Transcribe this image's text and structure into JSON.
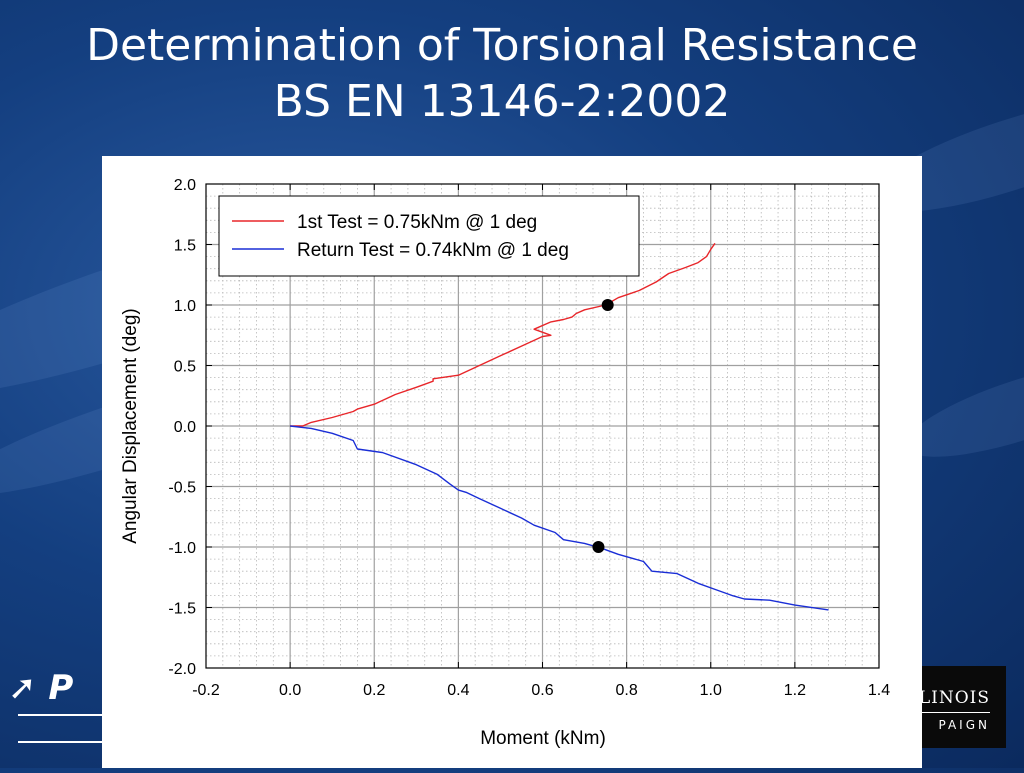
{
  "slide": {
    "title_line1": "Determination of Torsional Resistance",
    "title_line2": "BS EN 13146-2:2002",
    "logo_left_text": "P",
    "logo_right_text1": "LINOIS",
    "logo_right_text2": "PAIGN"
  },
  "chart_data": {
    "type": "line",
    "title": "",
    "xlabel": "Moment (kNm)",
    "ylabel": "Angular Displacement (deg)",
    "xlim": [
      -0.2,
      1.4
    ],
    "ylim": [
      -2.0,
      2.0
    ],
    "x_ticks": [
      "-0.2",
      "0.0",
      "0.2",
      "0.4",
      "0.6",
      "0.8",
      "1.0",
      "1.2",
      "1.4"
    ],
    "y_ticks": [
      "2.0",
      "1.5",
      "1.0",
      "0.5",
      "0.0",
      "-0.5",
      "-1.0",
      "-1.5",
      "-2.0"
    ],
    "grid": true,
    "legend_position": "top-left",
    "series": [
      {
        "name": "1st Test = 0.75kNm @ 1 deg",
        "color": "#e8262a",
        "points": [
          [
            0.0,
            0.0
          ],
          [
            0.03,
            0.0
          ],
          [
            0.05,
            0.03
          ],
          [
            0.1,
            0.07
          ],
          [
            0.15,
            0.12
          ],
          [
            0.16,
            0.14
          ],
          [
            0.2,
            0.18
          ],
          [
            0.25,
            0.26
          ],
          [
            0.3,
            0.32
          ],
          [
            0.34,
            0.37
          ],
          [
            0.34,
            0.39
          ],
          [
            0.4,
            0.42
          ],
          [
            0.45,
            0.5
          ],
          [
            0.5,
            0.58
          ],
          [
            0.55,
            0.66
          ],
          [
            0.6,
            0.74
          ],
          [
            0.62,
            0.75
          ],
          [
            0.58,
            0.8
          ],
          [
            0.62,
            0.86
          ],
          [
            0.65,
            0.88
          ],
          [
            0.67,
            0.9
          ],
          [
            0.68,
            0.93
          ],
          [
            0.7,
            0.96
          ],
          [
            0.75,
            1.0
          ],
          [
            0.78,
            1.06
          ],
          [
            0.83,
            1.12
          ],
          [
            0.87,
            1.19
          ],
          [
            0.9,
            1.26
          ],
          [
            0.94,
            1.31
          ],
          [
            0.97,
            1.35
          ],
          [
            0.99,
            1.4
          ],
          [
            1.0,
            1.46
          ],
          [
            1.01,
            1.51
          ]
        ]
      },
      {
        "name": "Return Test = 0.74kNm @ 1 deg",
        "color": "#1a2ed6",
        "points": [
          [
            0.0,
            0.0
          ],
          [
            0.05,
            -0.02
          ],
          [
            0.1,
            -0.06
          ],
          [
            0.15,
            -0.12
          ],
          [
            0.16,
            -0.19
          ],
          [
            0.22,
            -0.22
          ],
          [
            0.3,
            -0.32
          ],
          [
            0.35,
            -0.4
          ],
          [
            0.38,
            -0.48
          ],
          [
            0.4,
            -0.53
          ],
          [
            0.42,
            -0.55
          ],
          [
            0.45,
            -0.6
          ],
          [
            0.5,
            -0.68
          ],
          [
            0.55,
            -0.76
          ],
          [
            0.58,
            -0.82
          ],
          [
            0.63,
            -0.88
          ],
          [
            0.65,
            -0.94
          ],
          [
            0.7,
            -0.97
          ],
          [
            0.74,
            -1.01
          ],
          [
            0.78,
            -1.06
          ],
          [
            0.84,
            -1.12
          ],
          [
            0.86,
            -1.2
          ],
          [
            0.92,
            -1.22
          ],
          [
            0.97,
            -1.3
          ],
          [
            1.01,
            -1.35
          ],
          [
            1.05,
            -1.4
          ],
          [
            1.08,
            -1.43
          ],
          [
            1.14,
            -1.44
          ],
          [
            1.2,
            -1.48
          ],
          [
            1.28,
            -1.52
          ]
        ]
      }
    ],
    "markers": [
      [
        0.755,
        1.0
      ],
      [
        0.733,
        -1.0
      ]
    ]
  }
}
